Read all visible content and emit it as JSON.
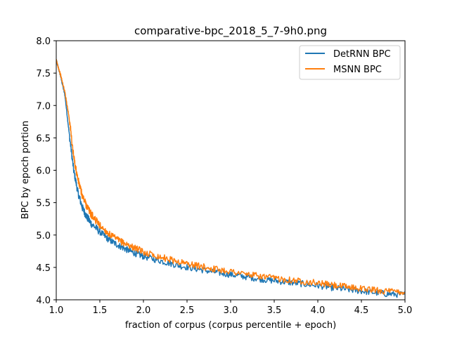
{
  "chart_data": {
    "type": "line",
    "title": "comparative-bpc_2018_5_7-9h0.png",
    "xlabel": "fraction of corpus (corpus percentile + epoch)",
    "ylabel": "BPC by epoch portion",
    "xlim": [
      1.0,
      5.0
    ],
    "ylim": [
      4.0,
      8.0
    ],
    "xticks": [
      "1.0",
      "1.5",
      "2.0",
      "2.5",
      "3.0",
      "3.5",
      "4.0",
      "4.5",
      "5.0"
    ],
    "yticks": [
      "4.0",
      "4.5",
      "5.0",
      "5.5",
      "6.0",
      "6.5",
      "7.0",
      "7.5",
      "8.0"
    ],
    "grid": false,
    "legend_position": "top-right",
    "series": [
      {
        "name": "DetRNN BPC",
        "color": "#1f77b4",
        "x": [
          1.0,
          1.05,
          1.1,
          1.15,
          1.2,
          1.25,
          1.3,
          1.35,
          1.4,
          1.5,
          1.6,
          1.7,
          1.8,
          1.9,
          2.0,
          2.2,
          2.4,
          2.6,
          2.8,
          3.0,
          3.2,
          3.4,
          3.6,
          3.8,
          4.0,
          4.2,
          4.4,
          4.6,
          4.8,
          5.0
        ],
        "y": [
          7.7,
          7.45,
          7.15,
          6.55,
          6.0,
          5.65,
          5.42,
          5.28,
          5.18,
          5.05,
          4.93,
          4.85,
          4.78,
          4.72,
          4.67,
          4.6,
          4.53,
          4.48,
          4.43,
          4.39,
          4.35,
          4.31,
          4.28,
          4.25,
          4.22,
          4.18,
          4.15,
          4.12,
          4.09,
          4.08
        ]
      },
      {
        "name": "MSNN BPC",
        "color": "#ff7f0e",
        "x": [
          1.0,
          1.05,
          1.1,
          1.15,
          1.2,
          1.25,
          1.3,
          1.35,
          1.4,
          1.5,
          1.6,
          1.7,
          1.8,
          1.9,
          2.0,
          2.2,
          2.4,
          2.6,
          2.8,
          3.0,
          3.2,
          3.4,
          3.6,
          3.8,
          4.0,
          4.2,
          4.4,
          4.6,
          4.8,
          5.0
        ],
        "y": [
          7.7,
          7.47,
          7.2,
          6.8,
          6.2,
          5.85,
          5.6,
          5.45,
          5.32,
          5.15,
          5.02,
          4.93,
          4.86,
          4.8,
          4.74,
          4.66,
          4.59,
          4.53,
          4.48,
          4.44,
          4.39,
          4.35,
          4.32,
          4.29,
          4.26,
          4.22,
          4.19,
          4.16,
          4.13,
          4.12
        ]
      }
    ]
  }
}
